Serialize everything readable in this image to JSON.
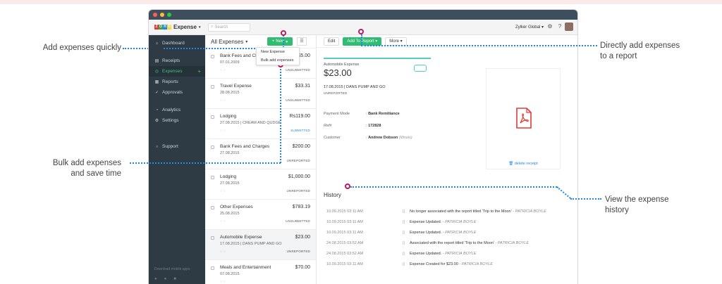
{
  "annotations": {
    "add_quickly": "Add expenses quickly",
    "bulk_add": [
      "Bulk add expenses",
      "and save time"
    ],
    "add_to_report": [
      "Directly add expenses",
      "to a report"
    ],
    "view_history": [
      "View the expense",
      "history"
    ]
  },
  "app": {
    "brand": "Expense",
    "logo_letters": [
      "Z",
      "O",
      "H",
      "O"
    ],
    "logo_colors": [
      "#e53935",
      "#43a047",
      "#1e88e5",
      "#fdd835"
    ],
    "search_placeholder": "Search",
    "org_name": "Zylker Global",
    "accent": "#2ebd71"
  },
  "sidebar": {
    "items": [
      {
        "label": "Dashboard",
        "icon": "home-icon"
      },
      {
        "label": "Receipts",
        "icon": "receipt-icon"
      },
      {
        "label": "Expenses",
        "icon": "expense-icon"
      },
      {
        "label": "Reports",
        "icon": "report-icon"
      },
      {
        "label": "Approvals",
        "icon": "approval-icon"
      },
      {
        "label": "Analytics",
        "icon": "analytics-icon"
      },
      {
        "label": "Settings",
        "icon": "gear-icon"
      },
      {
        "label": "Support",
        "icon": "support-icon"
      }
    ],
    "footer": "Download mobile apps"
  },
  "list": {
    "title": "All Expenses",
    "new_label": "New",
    "dropdown": [
      "New Expense",
      "Bulk add expenses"
    ],
    "rows": [
      {
        "name": "Bank Fees and Charges",
        "date": "07.01.2009",
        "amount": "$5.00",
        "status": "UNSUBMITTED",
        "merchant": ""
      },
      {
        "name": "Travel Expense",
        "date": "28.08.2015",
        "amount": "$33.31",
        "status": "UNSUBMITTED",
        "merchant": ""
      },
      {
        "name": "Lodging",
        "date": "27.08.2015",
        "amount": "Rs119.00",
        "status": "SUBMITTED",
        "merchant": "CREAM AND QUDGE"
      },
      {
        "name": "Bank Fees and Charges",
        "date": "27.08.2015",
        "amount": "$200.00",
        "status": "UNREPORTED",
        "merchant": ""
      },
      {
        "name": "Lodging",
        "date": "27.08.2015",
        "amount": "$1,000.00",
        "status": "UNREPORTED",
        "merchant": ""
      },
      {
        "name": "Other Expenses",
        "date": "25.08.2015",
        "amount": "$783.19",
        "status": "UNSUBMITTED",
        "merchant": ""
      },
      {
        "name": "Automobile Expense",
        "date": "17.08.2015",
        "amount": "$23.00",
        "status": "UNREPORTED",
        "merchant": "DANS PUMP AND GO"
      },
      {
        "name": "Meals and Entertainment",
        "date": "07.08.2015",
        "amount": "$70.00",
        "status": "",
        "merchant": ""
      }
    ]
  },
  "detail": {
    "edit": "Edit",
    "add_to_report": "Add To Report",
    "more": "More",
    "category": "Automobile Expense",
    "amount": "$23.00",
    "date_merchant": "17.08.2015 | DANS PUMP AND GO",
    "status": "UNREPORTED",
    "fields": [
      {
        "k": "Payment Mode",
        "v": "Bank Remittance",
        "note": ""
      },
      {
        "k": "Ref#",
        "v": "172828",
        "note": ""
      },
      {
        "k": "Customer",
        "v": "Andrew Dobson",
        "note": "(Illinois)"
      }
    ],
    "delete_receipt": "delete receipt",
    "history_title": "History",
    "history": [
      {
        "time": "10.09.2015 03:11 AM",
        "text": "No longer associated with the report titled 'Trip to the Moon'",
        "by": "PATRICIA BOYLE"
      },
      {
        "time": "10.09.2015 03:11 AM",
        "text": "Expense Updated.",
        "by": "PATRICIA BOYLE"
      },
      {
        "time": "10.09.2015 03:11 AM",
        "text": "Expense Updated.",
        "by": "PATRICIA BOYLE"
      },
      {
        "time": "24.08.2015 03:52 AM",
        "text": "Associated with the report titled 'Trip to the Moon'",
        "by": "PATRICIA BOYLE"
      },
      {
        "time": "24.08.2015 03:52 AM",
        "text": "Expense Updated.",
        "by": "PATRICIA BOYLE"
      },
      {
        "time": "10.09.2015 03:11 AM",
        "text": "Expense Created for $23.00",
        "by": "PATRICIA BOYLE"
      }
    ]
  }
}
